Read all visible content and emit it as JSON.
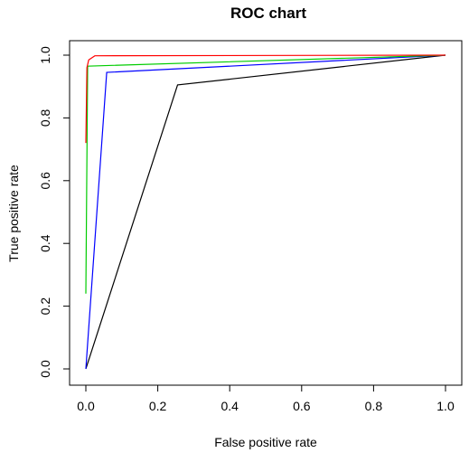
{
  "chart_data": {
    "type": "line",
    "title": "ROC chart",
    "xlabel": "False positive rate",
    "ylabel": "True positive rate",
    "xlim": [
      0,
      1
    ],
    "ylim": [
      0,
      1
    ],
    "x_ticks": [
      "0.0",
      "0.2",
      "0.4",
      "0.6",
      "0.8",
      "1.0"
    ],
    "y_ticks": [
      "0.0",
      "0.2",
      "0.4",
      "0.6",
      "0.8",
      "1.0"
    ],
    "grid": false,
    "legend": "none",
    "series": [
      {
        "color": "#000000",
        "points": [
          [
            0.0,
            0.0
          ],
          [
            0.255,
            0.905
          ],
          [
            1.0,
            1.0
          ]
        ]
      },
      {
        "color": "#0000ff",
        "points": [
          [
            0.0,
            0.0
          ],
          [
            0.058,
            0.945
          ],
          [
            1.0,
            1.0
          ]
        ]
      },
      {
        "color": "#00cc00",
        "points": [
          [
            0.0,
            0.24
          ],
          [
            0.005,
            0.965
          ],
          [
            1.0,
            1.0
          ]
        ]
      },
      {
        "color": "#ff0000",
        "points": [
          [
            0.0,
            0.72
          ],
          [
            0.003,
            0.96
          ],
          [
            0.008,
            0.985
          ],
          [
            0.025,
            0.998
          ],
          [
            1.0,
            1.0
          ]
        ]
      }
    ]
  }
}
